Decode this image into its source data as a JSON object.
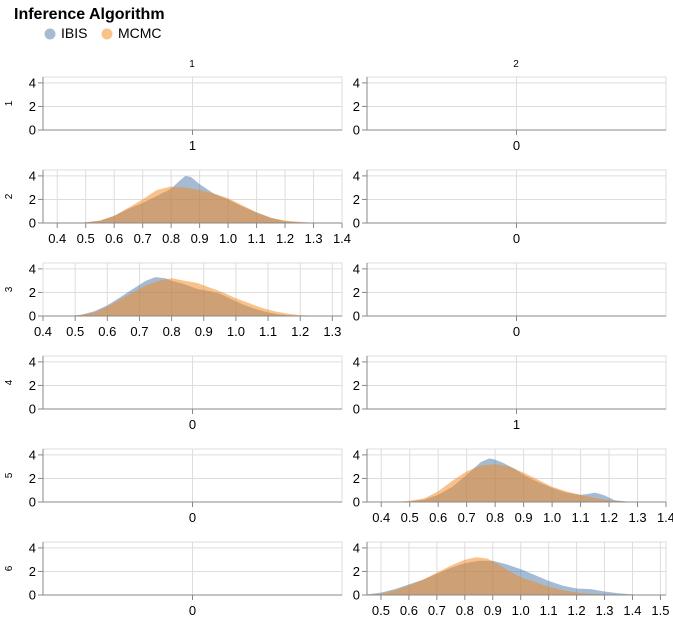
{
  "chart_data": {
    "type": "area",
    "legend": {
      "title": "Inference Algorithm",
      "placement": "top-left",
      "items": [
        {
          "label": "IBIS",
          "color": "#4c78a8"
        },
        {
          "label": "MCMC",
          "color": "#f58518"
        }
      ]
    },
    "column_titles": [
      "1",
      "2"
    ],
    "row_titles": [
      "1",
      "2",
      "3",
      "4",
      "5",
      "6"
    ],
    "y_ticks": [
      "0",
      "2",
      "4"
    ],
    "ylim": [
      0,
      4.5
    ],
    "grid": true,
    "panels": [
      {
        "row": "1",
        "col": "1",
        "x_tick_labels": [
          "1"
        ],
        "series": []
      },
      {
        "row": "1",
        "col": "2",
        "x_tick_labels": [
          "0"
        ],
        "series": []
      },
      {
        "row": "2",
        "col": "1",
        "x_tick_labels": [
          "0.4",
          "0.5",
          "0.6",
          "0.7",
          "0.8",
          "0.9",
          "1.0",
          "1.1",
          "1.2",
          "1.3",
          "1.4"
        ],
        "xlim": [
          0.35,
          1.4
        ],
        "series": [
          {
            "name": "IBIS",
            "x": [
              0.45,
              0.5,
              0.55,
              0.6,
              0.65,
              0.7,
              0.75,
              0.8,
              0.83,
              0.85,
              0.87,
              0.9,
              0.95,
              1.0,
              1.05,
              1.1,
              1.15,
              1.2,
              1.25,
              1.3
            ],
            "y": [
              0,
              0.05,
              0.2,
              0.6,
              1.2,
              1.7,
              2.3,
              2.9,
              3.6,
              4.0,
              3.9,
              3.3,
              2.5,
              2.0,
              1.4,
              0.9,
              0.45,
              0.15,
              0.05,
              0
            ]
          },
          {
            "name": "MCMC",
            "x": [
              0.45,
              0.5,
              0.55,
              0.6,
              0.65,
              0.7,
              0.75,
              0.8,
              0.85,
              0.9,
              0.95,
              1.0,
              1.05,
              1.1,
              1.15,
              1.2,
              1.25,
              1.3,
              1.35
            ],
            "y": [
              0,
              0.05,
              0.2,
              0.6,
              1.3,
              2.0,
              2.8,
              3.1,
              3.0,
              2.8,
              2.5,
              2.1,
              1.5,
              0.9,
              0.45,
              0.2,
              0.1,
              0.03,
              0
            ]
          }
        ]
      },
      {
        "row": "2",
        "col": "2",
        "x_tick_labels": [
          "0"
        ],
        "series": []
      },
      {
        "row": "3",
        "col": "1",
        "x_tick_labels": [
          "0.4",
          "0.5",
          "0.6",
          "0.7",
          "0.8",
          "0.9",
          "1.0",
          "1.1",
          "1.2",
          "1.3"
        ],
        "xlim": [
          0.4,
          1.33
        ],
        "series": [
          {
            "name": "IBIS",
            "x": [
              0.48,
              0.52,
              0.56,
              0.6,
              0.64,
              0.68,
              0.72,
              0.75,
              0.78,
              0.8,
              0.84,
              0.88,
              0.92,
              0.95,
              0.98,
              1.02,
              1.06,
              1.1,
              1.14,
              1.18,
              1.22
            ],
            "y": [
              0,
              0.1,
              0.4,
              0.9,
              1.6,
              2.3,
              3.0,
              3.3,
              3.2,
              3.0,
              2.7,
              2.3,
              2.1,
              1.9,
              1.5,
              1.0,
              0.6,
              0.3,
              0.12,
              0.04,
              0
            ]
          },
          {
            "name": "MCMC",
            "x": [
              0.48,
              0.52,
              0.56,
              0.6,
              0.64,
              0.68,
              0.72,
              0.76,
              0.8,
              0.84,
              0.88,
              0.92,
              0.96,
              1.0,
              1.04,
              1.08,
              1.12,
              1.16,
              1.2,
              1.24,
              1.28
            ],
            "y": [
              0,
              0.1,
              0.3,
              0.8,
              1.4,
              2.0,
              2.6,
              3.0,
              3.2,
              3.0,
              2.8,
              2.4,
              2.0,
              1.5,
              1.1,
              0.7,
              0.4,
              0.2,
              0.08,
              0.03,
              0
            ]
          }
        ]
      },
      {
        "row": "3",
        "col": "2",
        "x_tick_labels": [
          "0"
        ],
        "series": []
      },
      {
        "row": "4",
        "col": "1",
        "x_tick_labels": [
          "0"
        ],
        "series": []
      },
      {
        "row": "4",
        "col": "2",
        "x_tick_labels": [
          "1"
        ],
        "series": []
      },
      {
        "row": "5",
        "col": "1",
        "x_tick_labels": [
          "0"
        ],
        "series": []
      },
      {
        "row": "5",
        "col": "2",
        "x_tick_labels": [
          "0.4",
          "0.5",
          "0.6",
          "0.7",
          "0.8",
          "0.9",
          "1.0",
          "1.1",
          "1.2",
          "1.3",
          "1.4"
        ],
        "xlim": [
          0.35,
          1.4
        ],
        "series": [
          {
            "name": "IBIS",
            "x": [
              0.45,
              0.5,
              0.55,
              0.6,
              0.65,
              0.7,
              0.75,
              0.78,
              0.8,
              0.83,
              0.87,
              0.9,
              0.95,
              1.0,
              1.05,
              1.1,
              1.13,
              1.15,
              1.18,
              1.22,
              1.28
            ],
            "y": [
              0,
              0.05,
              0.2,
              0.6,
              1.3,
              2.3,
              3.4,
              3.7,
              3.6,
              3.3,
              2.8,
              2.3,
              1.7,
              1.2,
              0.8,
              0.6,
              0.7,
              0.8,
              0.6,
              0.15,
              0
            ]
          },
          {
            "name": "MCMC",
            "x": [
              0.45,
              0.5,
              0.55,
              0.6,
              0.65,
              0.7,
              0.75,
              0.8,
              0.85,
              0.9,
              0.95,
              1.0,
              1.05,
              1.1,
              1.15,
              1.2,
              1.25,
              1.3
            ],
            "y": [
              0,
              0.1,
              0.3,
              0.9,
              1.8,
              2.6,
              3.1,
              3.2,
              3.0,
              2.5,
              1.9,
              1.3,
              0.9,
              0.6,
              0.35,
              0.15,
              0.05,
              0
            ]
          }
        ]
      },
      {
        "row": "6",
        "col": "1",
        "x_tick_labels": [
          "0"
        ],
        "series": []
      },
      {
        "row": "6",
        "col": "2",
        "x_tick_labels": [
          "0.5",
          "0.6",
          "0.7",
          "0.8",
          "0.9",
          "1.0",
          "1.1",
          "1.2",
          "1.3",
          "1.4",
          "1.5"
        ],
        "xlim": [
          0.45,
          1.52
        ],
        "series": [
          {
            "name": "IBIS",
            "x": [
              0.45,
              0.5,
              0.55,
              0.6,
              0.65,
              0.7,
              0.75,
              0.8,
              0.85,
              0.9,
              0.95,
              1.0,
              1.05,
              1.1,
              1.15,
              1.2,
              1.25,
              1.3,
              1.35,
              1.4,
              1.45
            ],
            "y": [
              0.05,
              0.2,
              0.5,
              0.9,
              1.3,
              1.8,
              2.3,
              2.7,
              2.9,
              2.9,
              2.6,
              2.2,
              1.7,
              1.2,
              0.8,
              0.55,
              0.5,
              0.3,
              0.15,
              0.05,
              0.02
            ]
          },
          {
            "name": "MCMC",
            "x": [
              0.45,
              0.5,
              0.55,
              0.6,
              0.65,
              0.7,
              0.75,
              0.8,
              0.84,
              0.88,
              0.92,
              0.96,
              1.0,
              1.05,
              1.1,
              1.15,
              1.2,
              1.25,
              1.3,
              1.35,
              1.4
            ],
            "y": [
              0,
              0.1,
              0.4,
              0.8,
              1.3,
              1.9,
              2.5,
              3.0,
              3.2,
              3.1,
              2.6,
              2.0,
              1.5,
              1.1,
              0.7,
              0.4,
              0.2,
              0.1,
              0.05,
              0.02,
              0
            ]
          }
        ]
      }
    ]
  }
}
